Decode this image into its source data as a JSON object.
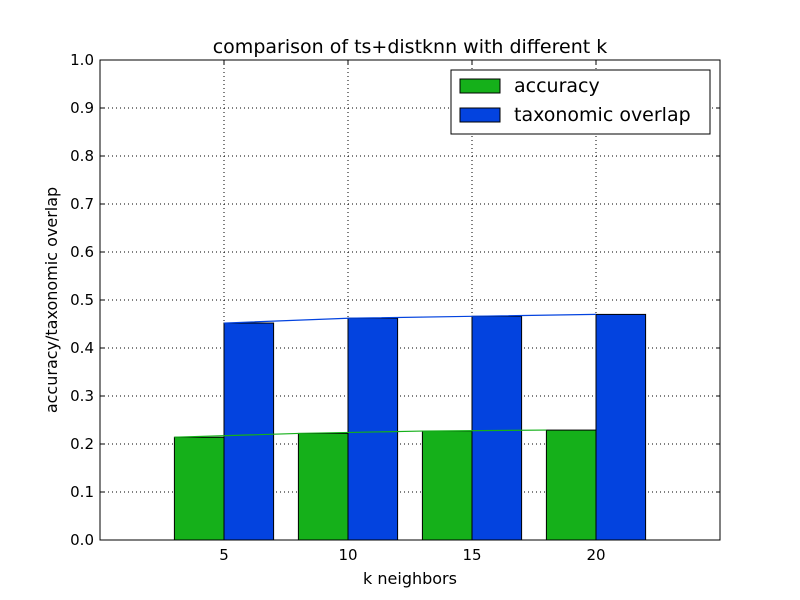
{
  "chart_data": {
    "type": "bar",
    "title": "comparison of ts+distknn with different k",
    "xlabel": "k neighbors",
    "ylabel": "accuracy/taxonomic overlap",
    "categories": [
      "5",
      "10",
      "15",
      "20"
    ],
    "x": [
      5,
      10,
      15,
      20
    ],
    "xlim": [
      0,
      25
    ],
    "ylim": [
      0.0,
      1.0
    ],
    "yticks": [
      "0.0",
      "0.1",
      "0.2",
      "0.3",
      "0.4",
      "0.5",
      "0.6",
      "0.7",
      "0.8",
      "0.9",
      "1.0"
    ],
    "grid": true,
    "legend_position": "top-right",
    "series": [
      {
        "name": "accuracy",
        "color": "#15b01a",
        "values": [
          0.214,
          0.222,
          0.227,
          0.229
        ]
      },
      {
        "name": "taxonomic overlap",
        "color": "#0343df",
        "values": [
          0.452,
          0.462,
          0.466,
          0.47
        ]
      }
    ]
  }
}
